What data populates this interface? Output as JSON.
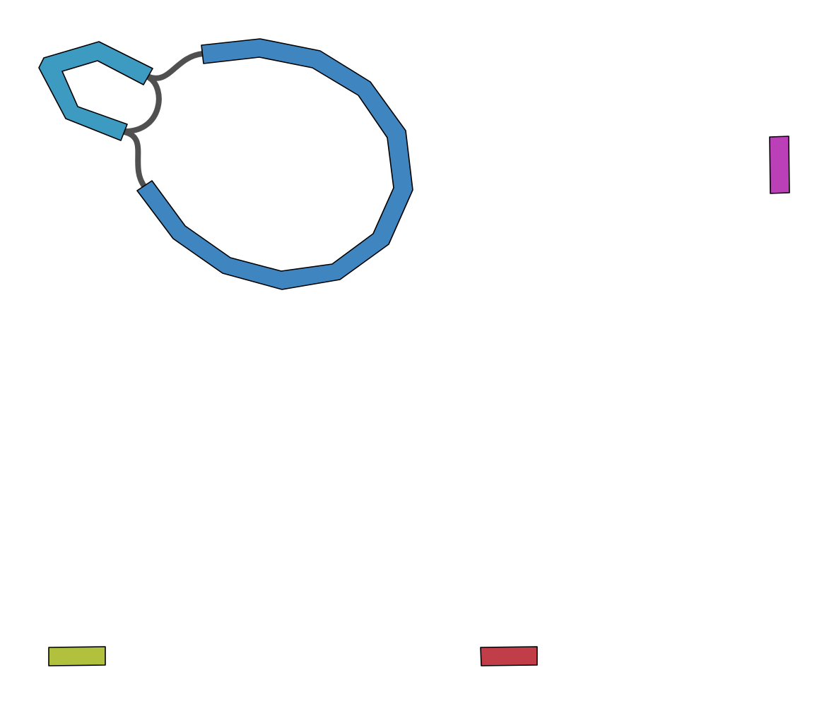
{
  "graph": {
    "type": "assembly-graph",
    "segments": [
      {
        "id": "large-loop",
        "color": "#3f86c1"
      },
      {
        "id": "small-loop",
        "color": "#3d9bc1"
      },
      {
        "id": "magenta-contig",
        "color": "#bb40b8"
      },
      {
        "id": "olive-contig",
        "color": "#b1c13d"
      },
      {
        "id": "red-contig",
        "color": "#c13d48"
      }
    ],
    "links": [
      {
        "from": "small-loop",
        "to": "large-loop",
        "color": "#505050"
      },
      {
        "from": "small-loop",
        "to": "small-loop",
        "color": "#505050"
      },
      {
        "from": "small-loop",
        "to": "large-loop",
        "color": "#505050"
      }
    ]
  }
}
